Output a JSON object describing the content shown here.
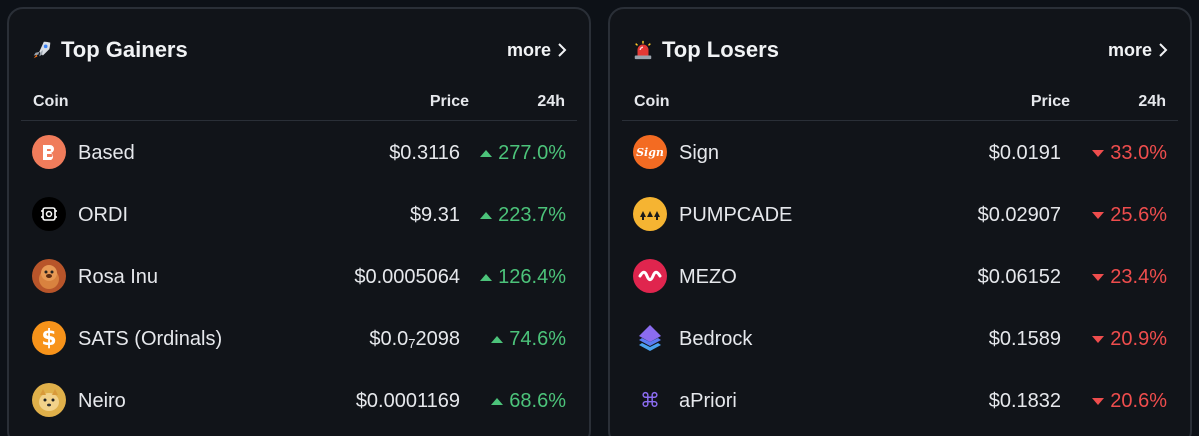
{
  "gainers": {
    "title": "Top Gainers",
    "title_icon": "rocket-icon",
    "more_label": "more",
    "columns": {
      "coin": "Coin",
      "price": "Price",
      "change": "24h"
    },
    "rows": [
      {
        "name": "Based",
        "price": "$0.3116",
        "change": "277.0%",
        "direction": "up",
        "icon": "based-logo-icon",
        "color": "#f07c5b"
      },
      {
        "name": "ORDI",
        "price": "$9.31",
        "change": "223.7%",
        "direction": "up",
        "icon": "ordi-logo-icon",
        "color": "#000000"
      },
      {
        "name": "Rosa Inu",
        "price": "$0.0005064",
        "change": "126.4%",
        "direction": "up",
        "icon": "rosa-inu-logo-icon",
        "color": "#b8552a"
      },
      {
        "name": "SATS (Ordinals)",
        "price_prefix": "$0.0",
        "price_sub": "7",
        "price_suffix": "2098",
        "change": "74.6%",
        "direction": "up",
        "icon": "sats-logo-icon",
        "color": "#f7931a"
      },
      {
        "name": "Neiro",
        "price": "$0.0001169",
        "change": "68.6%",
        "direction": "up",
        "icon": "neiro-logo-icon",
        "color": "#e0b04a"
      }
    ]
  },
  "losers": {
    "title": "Top Losers",
    "title_icon": "siren-icon",
    "more_label": "more",
    "columns": {
      "coin": "Coin",
      "price": "Price",
      "change": "24h"
    },
    "rows": [
      {
        "name": "Sign",
        "price": "$0.0191",
        "change": "33.0%",
        "direction": "down",
        "icon": "sign-logo-icon",
        "color": "#f36b22"
      },
      {
        "name": "PUMPCADE",
        "price": "$0.02907",
        "change": "25.6%",
        "direction": "down",
        "icon": "pumpcade-logo-icon",
        "color": "#f5b432"
      },
      {
        "name": "MEZO",
        "price": "$0.06152",
        "change": "23.4%",
        "direction": "down",
        "icon": "mezo-logo-icon",
        "color": "#e0254e"
      },
      {
        "name": "Bedrock",
        "price": "$0.1589",
        "change": "20.9%",
        "direction": "down",
        "icon": "bedrock-logo-icon",
        "color": "#8b6cf0"
      },
      {
        "name": "aPriori",
        "price": "$0.1832",
        "change": "20.6%",
        "direction": "down",
        "icon": "apriori-logo-icon",
        "color": "#7c5cf0"
      }
    ]
  }
}
